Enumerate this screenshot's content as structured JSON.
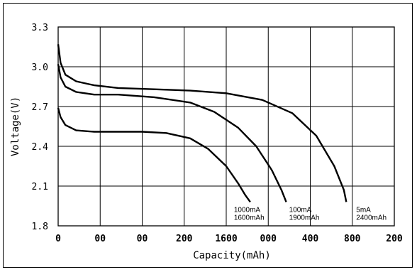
{
  "chart_data": {
    "type": "line",
    "xlabel": "Capacity(mAh)",
    "ylabel": "Voltage(V)",
    "y_ticks": [
      "3.3",
      "3.0",
      "2.7",
      "2.4",
      "2.1",
      "1.8"
    ],
    "x_ticks": [
      "0",
      "00",
      "00",
      "200",
      "1600",
      "000",
      "400",
      "800",
      "200"
    ],
    "ylim": [
      1.8,
      3.3
    ],
    "xlim": [
      0,
      2800
    ],
    "grid": true,
    "series": [
      {
        "name": "",
        "label_lines": [
          "1000mA",
          "1600mAh"
        ],
        "x": [
          0,
          20,
          60,
          150,
          300,
          500,
          700,
          900,
          1100,
          1250,
          1400,
          1500,
          1560,
          1600
        ],
        "y": [
          2.69,
          2.62,
          2.56,
          2.52,
          2.51,
          2.51,
          2.51,
          2.5,
          2.46,
          2.38,
          2.25,
          2.12,
          2.03,
          1.98
        ]
      },
      {
        "name": "",
        "label_lines": [
          "100mA",
          "1900mAh"
        ],
        "x": [
          0,
          20,
          60,
          150,
          300,
          500,
          800,
          1100,
          1300,
          1500,
          1650,
          1780,
          1860,
          1900
        ],
        "y": [
          3.02,
          2.92,
          2.85,
          2.81,
          2.79,
          2.79,
          2.77,
          2.73,
          2.66,
          2.54,
          2.4,
          2.22,
          2.07,
          1.98
        ]
      },
      {
        "name": "",
        "label_lines": [
          "5mA",
          "2400mAh"
        ],
        "x": [
          0,
          20,
          60,
          150,
          300,
          500,
          800,
          1100,
          1400,
          1700,
          1950,
          2150,
          2300,
          2380,
          2400
        ],
        "y": [
          3.17,
          3.03,
          2.94,
          2.89,
          2.86,
          2.84,
          2.83,
          2.82,
          2.8,
          2.75,
          2.65,
          2.48,
          2.25,
          2.07,
          1.98
        ]
      }
    ]
  }
}
